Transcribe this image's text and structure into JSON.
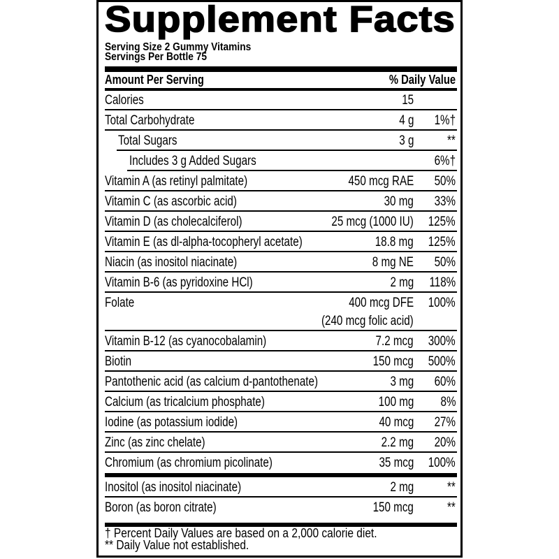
{
  "title": "Supplement Facts",
  "serving_size": "Serving Size 2 Gummy Vitamins",
  "servings_per": "Servings Per Bottle 75",
  "header": {
    "amount": "Amount Per Serving",
    "dv": "% Daily Value"
  },
  "rows": [
    {
      "name": "Calories",
      "amount": "15",
      "dv": ""
    },
    {
      "name": "Total Carbohydrate",
      "amount": "4 g",
      "dv": "1%†"
    },
    {
      "name": "Total Sugars",
      "amount": "3 g",
      "dv": "**"
    },
    {
      "name": "Includes 3 g Added Sugars",
      "amount": "",
      "dv": "6%†"
    },
    {
      "name": "Vitamin A (as retinyl palmitate)",
      "amount": "450 mcg RAE",
      "dv": "50%"
    },
    {
      "name": "Vitamin C (as ascorbic acid)",
      "amount": "30 mg",
      "dv": "33%"
    },
    {
      "name": "Vitamin D (as cholecalciferol)",
      "amount": "25 mcg (1000 IU)",
      "dv": "125%"
    },
    {
      "name": "Vitamin E (as dl-alpha-tocopheryl acetate)",
      "amount": "18.8 mg",
      "dv": "125%"
    },
    {
      "name": "Niacin (as inositol niacinate)",
      "amount": "8 mg NE",
      "dv": "50%"
    },
    {
      "name": "Vitamin B-6 (as pyridoxine HCl)",
      "amount": "2 mg",
      "dv": "118%"
    },
    {
      "name": "Folate",
      "amount": "400 mcg DFE",
      "amount_note": "(240 mcg folic acid)",
      "dv": "100%"
    },
    {
      "name": "Vitamin B-12 (as cyanocobalamin)",
      "amount": "7.2 mcg",
      "dv": "300%"
    },
    {
      "name": "Biotin",
      "amount": "150 mcg",
      "dv": "500%"
    },
    {
      "name": "Pantothenic acid (as calcium d-pantothenate)",
      "amount": "3 mg",
      "dv": "60%"
    },
    {
      "name": "Calcium (as tricalcium phosphate)",
      "amount": "100 mg",
      "dv": "8%"
    },
    {
      "name": "Iodine (as potassium iodide)",
      "amount": "40 mcg",
      "dv": "27%"
    },
    {
      "name": "Zinc (as zinc chelate)",
      "amount": "2.2 mg",
      "dv": "20%"
    },
    {
      "name": "Chromium (as chromium picolinate)",
      "amount": "35 mcg",
      "dv": "100%"
    },
    {
      "name": "Inositol (as inositol niacinate)",
      "amount": "2 mg",
      "dv": "**"
    },
    {
      "name": "Boron (as boron citrate)",
      "amount": "150 mcg",
      "dv": "**"
    }
  ],
  "footnotes": [
    "† Percent Daily Values are based on a 2,000 calorie diet.",
    "** Daily Value not established."
  ]
}
